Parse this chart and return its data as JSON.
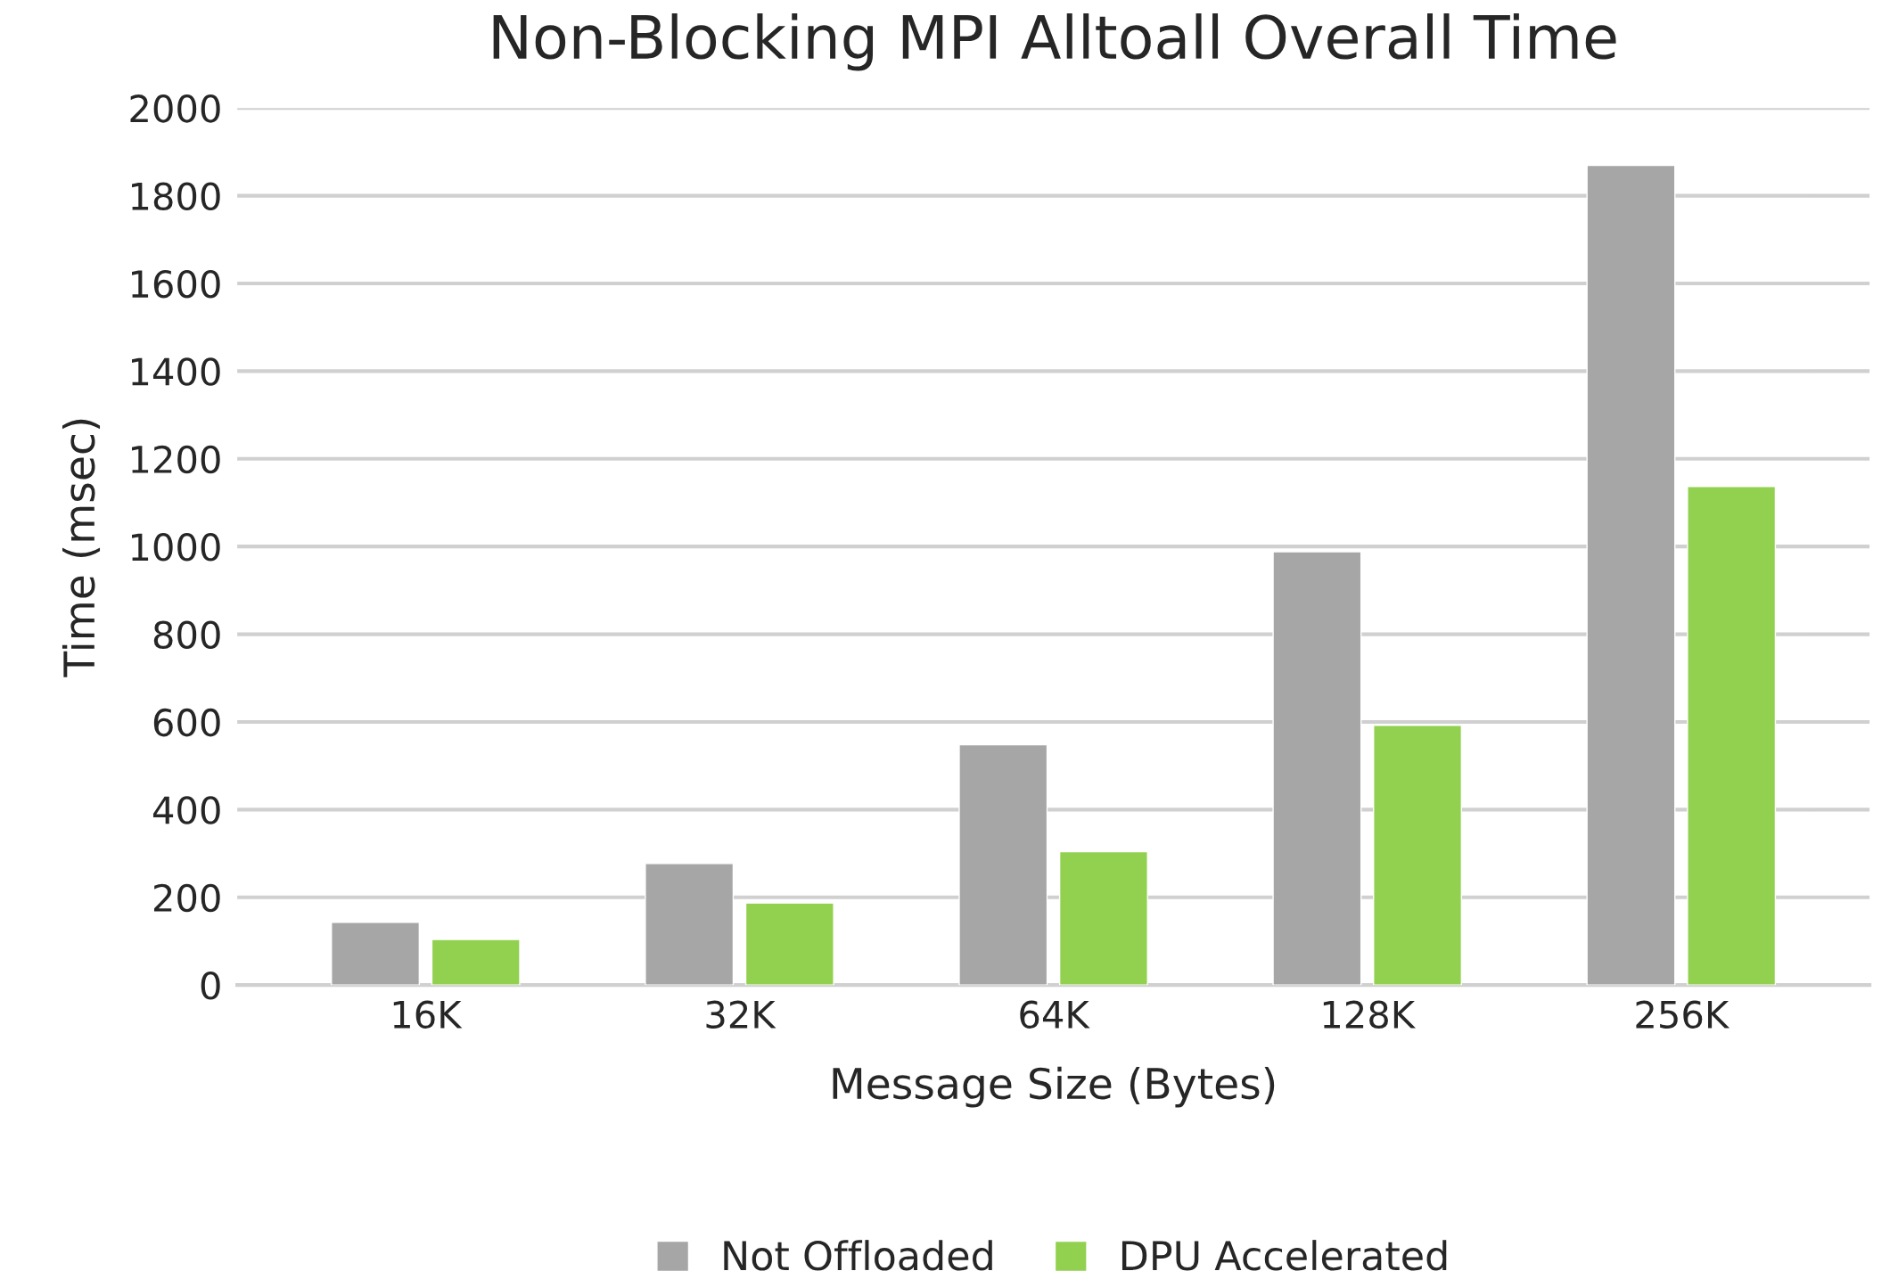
{
  "chart_data": {
    "type": "bar",
    "title": "Non-Blocking MPI Alltoall Overall Time",
    "xlabel": "Message Size (Bytes)",
    "ylabel": "Time (msec)",
    "categories": [
      "16K",
      "32K",
      "64K",
      "128K",
      "256K"
    ],
    "series": [
      {
        "name": "Not Offloaded",
        "color": "#a6a6a6",
        "values": [
          143,
          277,
          548,
          988,
          1869
        ]
      },
      {
        "name": "DPU Accelerated",
        "color": "#92d050",
        "values": [
          104,
          187,
          304,
          592,
          1137
        ]
      }
    ],
    "ylim": [
      0,
      2000
    ],
    "yticks": [
      0,
      200,
      400,
      600,
      800,
      1000,
      1200,
      1400,
      1600,
      1800,
      2000
    ],
    "grid": "y",
    "legend": "bottom"
  }
}
